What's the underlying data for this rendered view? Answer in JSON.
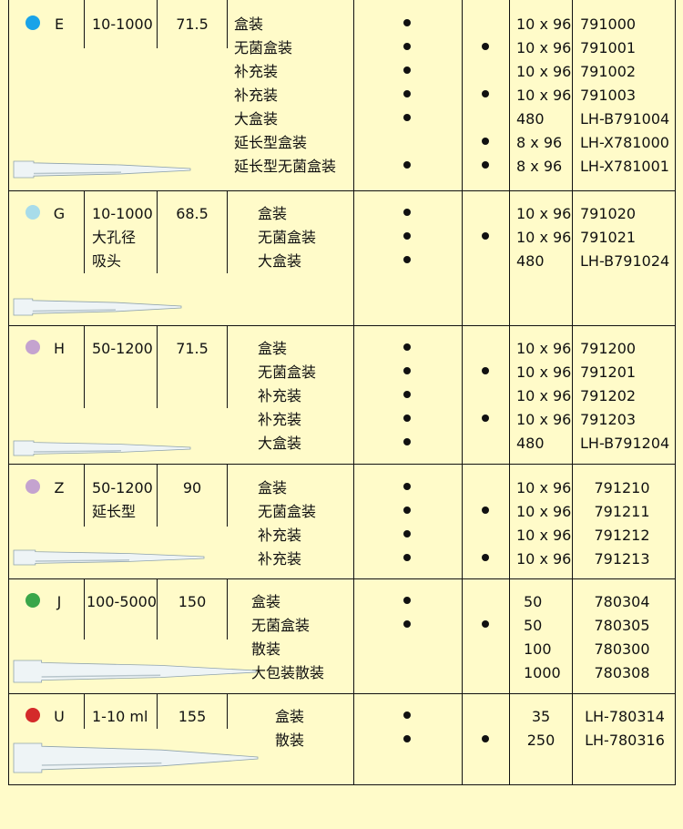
{
  "rows": [
    {
      "code": "E",
      "color": "#1aa3e8",
      "range": [
        "10-1000"
      ],
      "length": "71.5",
      "packs": [
        "盒装",
        "无菌盒装",
        "补充装",
        "补充装",
        "大盒装",
        "延长型盒装",
        "延长型无菌盒装"
      ],
      "col_a": [
        true,
        true,
        true,
        true,
        true,
        false,
        true
      ],
      "col_b": [
        false,
        true,
        false,
        true,
        false,
        true,
        true
      ],
      "qty": [
        "10 x 96",
        "10 x 96",
        "10 x 96",
        "10 x 96",
        "480",
        "8 x 96",
        "8 x 96"
      ],
      "cat": [
        "791000",
        "791001",
        "791002",
        "791003",
        "LH-B791004",
        "LH-X781000",
        "LH-X781001"
      ]
    },
    {
      "code": "G",
      "color": "#a8dcea",
      "range": [
        "10-1000",
        "大孔径",
        "吸头"
      ],
      "length": "68.5",
      "packs": [
        "盒装",
        "无菌盒装",
        "大盒装"
      ],
      "col_a": [
        true,
        true,
        true
      ],
      "col_b": [
        false,
        true,
        false
      ],
      "qty": [
        "10 x 96",
        "10 x 96",
        "480"
      ],
      "cat": [
        "791020",
        "791021",
        "LH-B791024"
      ]
    },
    {
      "code": "H",
      "color": "#c4a3cf",
      "range": [
        "50-1200"
      ],
      "length": "71.5",
      "packs": [
        "盒装",
        "无菌盒装",
        "补充装",
        "补充装",
        "大盒装"
      ],
      "col_a": [
        true,
        true,
        true,
        true,
        true
      ],
      "col_b": [
        false,
        true,
        false,
        true,
        false
      ],
      "qty": [
        "10 x 96",
        "10 x 96",
        "10 x 96",
        "10 x 96",
        "480"
      ],
      "cat": [
        "791200",
        "791201",
        "791202",
        "791203",
        "LH-B791204"
      ]
    },
    {
      "code": "Z",
      "color": "#c4a3cf",
      "range": [
        "50-1200",
        "延长型"
      ],
      "length": "90",
      "packs": [
        "盒装",
        "无菌盒装",
        "补充装",
        "补充装"
      ],
      "col_a": [
        true,
        true,
        true,
        true
      ],
      "col_b": [
        false,
        true,
        false,
        true
      ],
      "qty": [
        "10 x 96",
        "10 x 96",
        "10 x 96",
        "10 x 96"
      ],
      "cat": [
        "791210",
        "791211",
        "791212",
        "791213"
      ]
    },
    {
      "code": "J",
      "color": "#3aa64a",
      "range": [
        "100-5000"
      ],
      "length": "150",
      "packs": [
        "盒装",
        "无菌盒装",
        "散装",
        "大包装散装"
      ],
      "col_a": [
        true,
        true,
        false,
        false
      ],
      "col_b": [
        false,
        true,
        false,
        false
      ],
      "qty": [
        "50",
        "50",
        "100",
        "1000"
      ],
      "cat": [
        "780304",
        "780305",
        "780300",
        "780308"
      ]
    },
    {
      "code": "U",
      "color": "#d42a2a",
      "range": [
        "1-10 ml"
      ],
      "length": "155",
      "packs": [
        "盒装",
        "散装"
      ],
      "col_a": [
        true,
        true
      ],
      "col_b": [
        false,
        true
      ],
      "qty": [
        "35",
        "250"
      ],
      "cat": [
        "LH-780314",
        "LH-780316"
      ]
    }
  ]
}
